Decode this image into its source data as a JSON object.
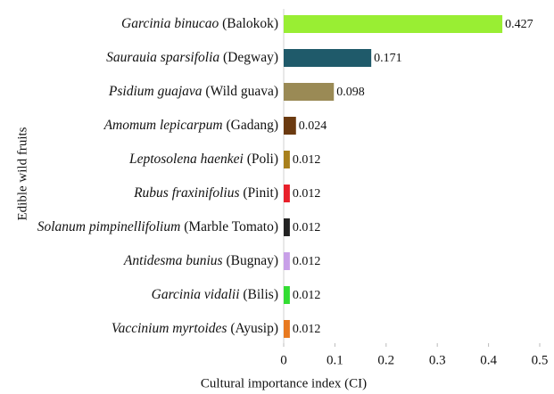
{
  "chart_data": {
    "type": "barh",
    "categories": [
      "Garcinia binucao (Balokok)",
      "Saurauia sparsifolia (Degway)",
      "Psidium guajava (Wild guava)",
      "Amomum lepicarpum (Gadang)",
      "Leptosolena haenkei (Poli)",
      "Rubus fraxinifolius (Pinit)",
      "Solanum pimpinellifolium (Marble Tomato)",
      "Antidesma bunius (Bugnay)",
      "Garcinia vidalii (Bilis)",
      "Vaccinium myrtoides (Ayusip)"
    ],
    "values": [
      0.427,
      0.171,
      0.098,
      0.024,
      0.012,
      0.012,
      0.012,
      0.012,
      0.012,
      0.012
    ],
    "colors": [
      "#99ee33",
      "#1f5a6a",
      "#9a8a55",
      "#6b3a10",
      "#a8801c",
      "#e8202a",
      "#222222",
      "#c8a0e8",
      "#33dd33",
      "#e87a20"
    ],
    "xlim": [
      0,
      0.5
    ],
    "xticks": [
      0,
      0.1,
      0.2,
      0.3,
      0.4,
      0.5
    ],
    "xlabel": "Cultural importance index (CI)",
    "ylabel": "Edible wild fruits"
  }
}
